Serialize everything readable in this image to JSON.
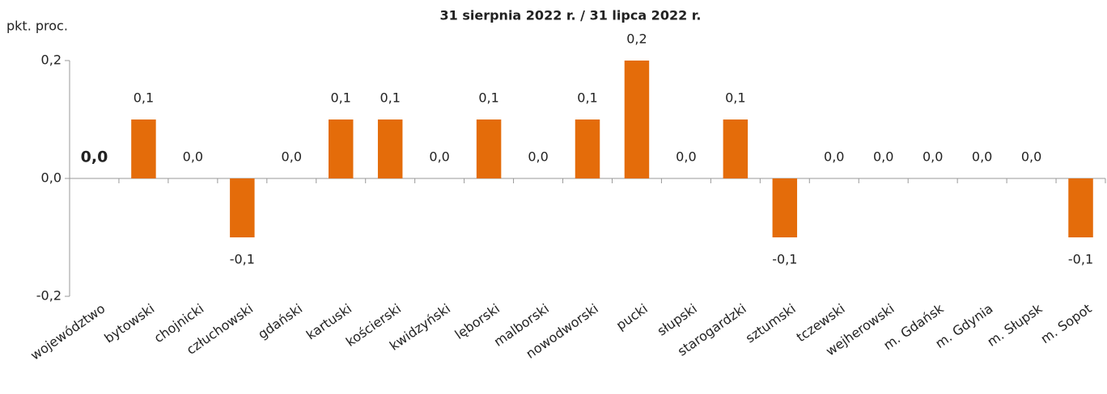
{
  "chart_data": {
    "type": "bar",
    "title": "31 sierpnia 2022 r. / 31 lipca 2022 r.",
    "y_label": "pkt. proc.",
    "categories": [
      "województwo",
      "bytowski",
      "chojnicki",
      "człuchowski",
      "gdański",
      "kartuski",
      "kościerski",
      "kwidzyński",
      "lęborski",
      "malborski",
      "nowodworski",
      "pucki",
      "słupski",
      "starogardzki",
      "sztumski",
      "tczewski",
      "wejherowski",
      "m. Gdańsk",
      "m. Gdynia",
      "m. Słupsk",
      "m. Sopot"
    ],
    "values": [
      0.0,
      0.1,
      0.0,
      -0.1,
      0.0,
      0.1,
      0.1,
      0.0,
      0.1,
      0.0,
      0.1,
      0.2,
      0.0,
      0.1,
      -0.1,
      0.0,
      0.0,
      0.0,
      0.0,
      0.0,
      -0.1
    ],
    "value_labels": [
      "0,0",
      "0,1",
      "0,0",
      "-0,1",
      "0,0",
      "0,1",
      "0,1",
      "0,0",
      "0,1",
      "0,0",
      "0,1",
      "0,2",
      "0,0",
      "0,1",
      "-0,1",
      "0,0",
      "0,0",
      "0,0",
      "0,0",
      "0,0",
      "-0,1"
    ],
    "color": "#e46c0a",
    "ylim": [
      -0.2,
      0.2
    ],
    "yticks": [
      {
        "value": -0.2,
        "label": "-0,2"
      },
      {
        "value": 0.0,
        "label": "0,0"
      },
      {
        "value": 0.2,
        "label": "0,2"
      }
    ]
  }
}
